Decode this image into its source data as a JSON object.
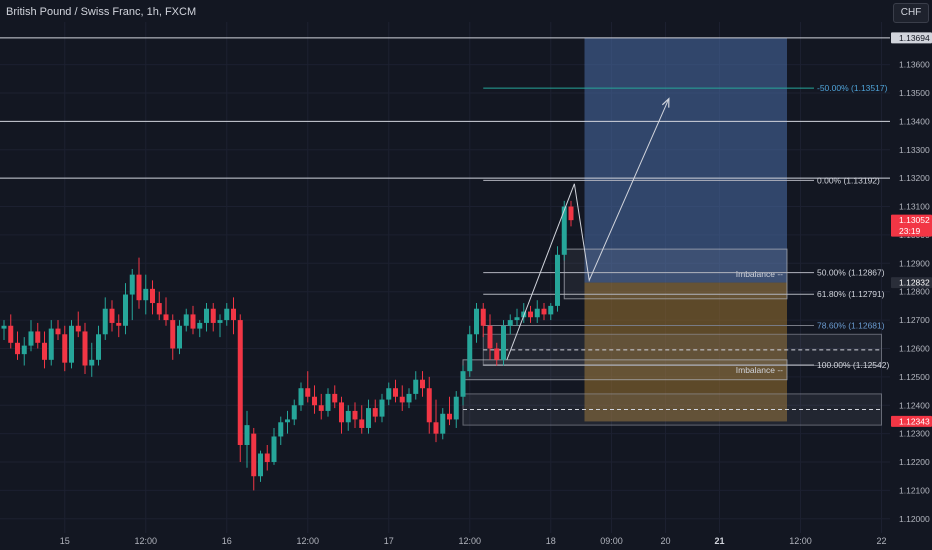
{
  "header": {
    "symbol_title": "British Pound / Swiss Franc, 1h, FXCM",
    "currency_button": "CHF"
  },
  "colors": {
    "background": "#131722",
    "bull": "#26a69a",
    "bear": "#f23645",
    "axis_text": "#b2b5be",
    "grid": "#1c2030",
    "target_zone": "#4b6ea8",
    "stop_zone": "#8f6a2f",
    "fib_teal": "#26a69a"
  },
  "chart_data": {
    "type": "candlestick",
    "title": "British Pound / Swiss Franc, 1h, FXCM",
    "y_axis": {
      "ticks": [
        "1.13600",
        "1.13500",
        "1.13400",
        "1.13300",
        "1.13200",
        "1.13100",
        "1.13000",
        "1.12900",
        "1.12800",
        "1.12700",
        "1.12600",
        "1.12500",
        "1.12400",
        "1.12300",
        "1.12200",
        "1.12100",
        "1.12000"
      ],
      "range": [
        1.1195,
        1.1375
      ]
    },
    "x_axis": {
      "ticks": [
        {
          "label": "15",
          "bold": false,
          "idx": 9
        },
        {
          "label": "12:00",
          "bold": false,
          "idx": 21
        },
        {
          "label": "16",
          "bold": false,
          "idx": 33
        },
        {
          "label": "12:00",
          "bold": false,
          "idx": 45
        },
        {
          "label": "17",
          "bold": false,
          "idx": 57
        },
        {
          "label": "12:00",
          "bold": false,
          "idx": 69
        },
        {
          "label": "18",
          "bold": false,
          "idx": 81
        },
        {
          "label": "09:00",
          "bold": false,
          "idx": 90
        },
        {
          "label": "20",
          "bold": false,
          "idx": 98
        },
        {
          "label": "21",
          "bold": true,
          "idx": 106
        },
        {
          "label": "12:00",
          "bold": false,
          "idx": 118
        },
        {
          "label": "22",
          "bold": false,
          "idx": 130
        }
      ]
    },
    "price_labels": [
      {
        "price": 1.13694,
        "text": "1.13694",
        "kind": "level"
      },
      {
        "price": 1.13052,
        "text": "1.13052",
        "kind": "current",
        "countdown": "23:19"
      },
      {
        "price": 1.12832,
        "text": "1.12832",
        "kind": "target"
      },
      {
        "price": 1.12343,
        "text": "1.12343",
        "kind": "stop"
      }
    ],
    "horizontal_levels": [
      1.13694,
      1.134,
      1.132
    ],
    "fib_levels": [
      {
        "label": "0.00% (1.13192)",
        "price": 1.13192,
        "style": "plain"
      },
      {
        "label": "50.00% (1.12867)",
        "price": 1.12867,
        "style": "plain"
      },
      {
        "label": "61.80% (1.12791)",
        "price": 1.12791,
        "style": "plain"
      },
      {
        "label": "78.60% (1.12681)",
        "price": 1.12681,
        "style": "muted"
      },
      {
        "label": "100.00% (1.12542)",
        "price": 1.12542,
        "style": "plain"
      },
      {
        "label": "-50.00% (1.13517)",
        "price": 1.13517,
        "style": "teal"
      }
    ],
    "imbalance_zones": [
      {
        "label": "Imbalance --",
        "top": 1.1295,
        "bottom": 1.12775,
        "x_start": 83,
        "x_end": 116
      },
      {
        "label": "Imbalance --",
        "top": 1.1256,
        "bottom": 1.1249,
        "x_start": 68,
        "x_end": 116
      }
    ],
    "ob_zones": [
      {
        "top": 1.1265,
        "bottom": 1.1254,
        "x_start": 71,
        "x_end": 130
      },
      {
        "top": 1.1244,
        "bottom": 1.1233,
        "x_start": 68,
        "x_end": 130
      }
    ],
    "position": {
      "entry": 1.12832,
      "target": 1.13694,
      "stop": 1.12343,
      "x_start": 86,
      "x_end": 116
    },
    "projection_path": [
      {
        "idx": 84.5,
        "price": 1.1318
      },
      {
        "idx": 86.7,
        "price": 1.1284
      },
      {
        "idx": 98.5,
        "price": 1.1348
      }
    ],
    "swing_path": [
      {
        "idx": 74.5,
        "price": 1.1256
      },
      {
        "idx": 84.5,
        "price": 1.1318
      }
    ],
    "candles": [
      {
        "o": 1.1267,
        "h": 1.127,
        "l": 1.1263,
        "c": 1.1268
      },
      {
        "o": 1.1268,
        "h": 1.1272,
        "l": 1.126,
        "c": 1.1262
      },
      {
        "o": 1.1262,
        "h": 1.1266,
        "l": 1.1256,
        "c": 1.1258
      },
      {
        "o": 1.1258,
        "h": 1.1264,
        "l": 1.1254,
        "c": 1.1261
      },
      {
        "o": 1.1261,
        "h": 1.127,
        "l": 1.1259,
        "c": 1.1266
      },
      {
        "o": 1.1266,
        "h": 1.1269,
        "l": 1.126,
        "c": 1.1262
      },
      {
        "o": 1.1262,
        "h": 1.1266,
        "l": 1.1253,
        "c": 1.1256
      },
      {
        "o": 1.1256,
        "h": 1.127,
        "l": 1.1254,
        "c": 1.1267
      },
      {
        "o": 1.1267,
        "h": 1.127,
        "l": 1.1263,
        "c": 1.1265
      },
      {
        "o": 1.1265,
        "h": 1.1268,
        "l": 1.1252,
        "c": 1.1255
      },
      {
        "o": 1.1255,
        "h": 1.127,
        "l": 1.1253,
        "c": 1.1268
      },
      {
        "o": 1.1268,
        "h": 1.1273,
        "l": 1.1264,
        "c": 1.1266
      },
      {
        "o": 1.1266,
        "h": 1.1269,
        "l": 1.1251,
        "c": 1.1254
      },
      {
        "o": 1.1254,
        "h": 1.1262,
        "l": 1.125,
        "c": 1.1256
      },
      {
        "o": 1.1256,
        "h": 1.1268,
        "l": 1.1254,
        "c": 1.1265
      },
      {
        "o": 1.1265,
        "h": 1.1278,
        "l": 1.1263,
        "c": 1.1274
      },
      {
        "o": 1.1274,
        "h": 1.1277,
        "l": 1.1266,
        "c": 1.1269
      },
      {
        "o": 1.1269,
        "h": 1.1272,
        "l": 1.1264,
        "c": 1.1268
      },
      {
        "o": 1.1268,
        "h": 1.1283,
        "l": 1.1265,
        "c": 1.1279
      },
      {
        "o": 1.1279,
        "h": 1.1288,
        "l": 1.127,
        "c": 1.1286
      },
      {
        "o": 1.1286,
        "h": 1.1292,
        "l": 1.1274,
        "c": 1.1277
      },
      {
        "o": 1.1277,
        "h": 1.1286,
        "l": 1.1272,
        "c": 1.1281
      },
      {
        "o": 1.1281,
        "h": 1.1284,
        "l": 1.1272,
        "c": 1.1276
      },
      {
        "o": 1.1276,
        "h": 1.128,
        "l": 1.127,
        "c": 1.1272
      },
      {
        "o": 1.1272,
        "h": 1.1278,
        "l": 1.1268,
        "c": 1.127
      },
      {
        "o": 1.127,
        "h": 1.1272,
        "l": 1.1256,
        "c": 1.126
      },
      {
        "o": 1.126,
        "h": 1.127,
        "l": 1.1258,
        "c": 1.1268
      },
      {
        "o": 1.1268,
        "h": 1.1274,
        "l": 1.1266,
        "c": 1.1272
      },
      {
        "o": 1.1272,
        "h": 1.1275,
        "l": 1.1265,
        "c": 1.1267
      },
      {
        "o": 1.1267,
        "h": 1.127,
        "l": 1.1264,
        "c": 1.1269
      },
      {
        "o": 1.1269,
        "h": 1.1276,
        "l": 1.1266,
        "c": 1.1274
      },
      {
        "o": 1.1274,
        "h": 1.1276,
        "l": 1.1266,
        "c": 1.1269
      },
      {
        "o": 1.1269,
        "h": 1.1272,
        "l": 1.1264,
        "c": 1.127
      },
      {
        "o": 1.127,
        "h": 1.1276,
        "l": 1.1268,
        "c": 1.1274
      },
      {
        "o": 1.1274,
        "h": 1.1278,
        "l": 1.1265,
        "c": 1.127
      },
      {
        "o": 1.127,
        "h": 1.1272,
        "l": 1.122,
        "c": 1.1226
      },
      {
        "o": 1.1226,
        "h": 1.1238,
        "l": 1.1218,
        "c": 1.1233
      },
      {
        "o": 1.123,
        "h": 1.1232,
        "l": 1.121,
        "c": 1.1215
      },
      {
        "o": 1.1215,
        "h": 1.1224,
        "l": 1.1213,
        "c": 1.1223
      },
      {
        "o": 1.1223,
        "h": 1.1226,
        "l": 1.1217,
        "c": 1.122
      },
      {
        "o": 1.122,
        "h": 1.1232,
        "l": 1.1219,
        "c": 1.1229
      },
      {
        "o": 1.1229,
        "h": 1.1236,
        "l": 1.1226,
        "c": 1.1234
      },
      {
        "o": 1.1234,
        "h": 1.1238,
        "l": 1.123,
        "c": 1.1235
      },
      {
        "o": 1.1235,
        "h": 1.1242,
        "l": 1.1233,
        "c": 1.124
      },
      {
        "o": 1.124,
        "h": 1.1248,
        "l": 1.1238,
        "c": 1.1246
      },
      {
        "o": 1.1246,
        "h": 1.1252,
        "l": 1.1241,
        "c": 1.1243
      },
      {
        "o": 1.1243,
        "h": 1.1247,
        "l": 1.1237,
        "c": 1.124
      },
      {
        "o": 1.124,
        "h": 1.1244,
        "l": 1.1235,
        "c": 1.1238
      },
      {
        "o": 1.1238,
        "h": 1.1246,
        "l": 1.1236,
        "c": 1.1244
      },
      {
        "o": 1.1244,
        "h": 1.1247,
        "l": 1.1239,
        "c": 1.1241
      },
      {
        "o": 1.1241,
        "h": 1.1243,
        "l": 1.123,
        "c": 1.1234
      },
      {
        "o": 1.1234,
        "h": 1.124,
        "l": 1.1231,
        "c": 1.1238
      },
      {
        "o": 1.1238,
        "h": 1.1241,
        "l": 1.1232,
        "c": 1.1235
      },
      {
        "o": 1.1235,
        "h": 1.124,
        "l": 1.123,
        "c": 1.1232
      },
      {
        "o": 1.1232,
        "h": 1.1242,
        "l": 1.123,
        "c": 1.1239
      },
      {
        "o": 1.1239,
        "h": 1.1242,
        "l": 1.1234,
        "c": 1.1236
      },
      {
        "o": 1.1236,
        "h": 1.1244,
        "l": 1.1234,
        "c": 1.1242
      },
      {
        "o": 1.1242,
        "h": 1.1248,
        "l": 1.124,
        "c": 1.1246
      },
      {
        "o": 1.1246,
        "h": 1.1249,
        "l": 1.1241,
        "c": 1.1243
      },
      {
        "o": 1.1243,
        "h": 1.1247,
        "l": 1.1238,
        "c": 1.1241
      },
      {
        "o": 1.1241,
        "h": 1.1246,
        "l": 1.1239,
        "c": 1.1244
      },
      {
        "o": 1.1244,
        "h": 1.1252,
        "l": 1.1242,
        "c": 1.1249
      },
      {
        "o": 1.1249,
        "h": 1.1252,
        "l": 1.1243,
        "c": 1.1246
      },
      {
        "o": 1.1246,
        "h": 1.125,
        "l": 1.123,
        "c": 1.1234
      },
      {
        "o": 1.1234,
        "h": 1.1242,
        "l": 1.1227,
        "c": 1.123
      },
      {
        "o": 1.123,
        "h": 1.1239,
        "l": 1.1228,
        "c": 1.1237
      },
      {
        "o": 1.1237,
        "h": 1.1243,
        "l": 1.1233,
        "c": 1.1235
      },
      {
        "o": 1.1235,
        "h": 1.1245,
        "l": 1.1232,
        "c": 1.1243
      },
      {
        "o": 1.1243,
        "h": 1.1254,
        "l": 1.124,
        "c": 1.1252
      },
      {
        "o": 1.1252,
        "h": 1.1268,
        "l": 1.125,
        "c": 1.1265
      },
      {
        "o": 1.1265,
        "h": 1.1276,
        "l": 1.1262,
        "c": 1.1274
      },
      {
        "o": 1.1274,
        "h": 1.1276,
        "l": 1.1264,
        "c": 1.1268
      },
      {
        "o": 1.1268,
        "h": 1.1272,
        "l": 1.1256,
        "c": 1.126
      },
      {
        "o": 1.126,
        "h": 1.1262,
        "l": 1.1254,
        "c": 1.1256
      },
      {
        "o": 1.1256,
        "h": 1.127,
        "l": 1.1254,
        "c": 1.1268
      },
      {
        "o": 1.1268,
        "h": 1.1272,
        "l": 1.1265,
        "c": 1.127
      },
      {
        "o": 1.127,
        "h": 1.1274,
        "l": 1.1268,
        "c": 1.1271
      },
      {
        "o": 1.1271,
        "h": 1.1276,
        "l": 1.1269,
        "c": 1.1273
      },
      {
        "o": 1.1273,
        "h": 1.1275,
        "l": 1.1269,
        "c": 1.1271
      },
      {
        "o": 1.1271,
        "h": 1.1277,
        "l": 1.1269,
        "c": 1.1274
      },
      {
        "o": 1.1274,
        "h": 1.1276,
        "l": 1.127,
        "c": 1.1272
      },
      {
        "o": 1.1272,
        "h": 1.1276,
        "l": 1.127,
        "c": 1.1275
      },
      {
        "o": 1.1275,
        "h": 1.1296,
        "l": 1.1273,
        "c": 1.1293
      },
      {
        "o": 1.1293,
        "h": 1.1312,
        "l": 1.1291,
        "c": 1.131
      },
      {
        "o": 1.131,
        "h": 1.1312,
        "l": 1.1303,
        "c": 1.13052
      }
    ]
  }
}
